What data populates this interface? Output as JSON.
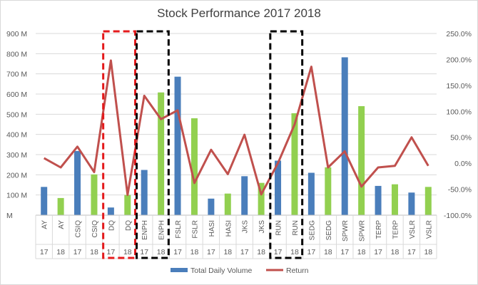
{
  "chart_data": {
    "type": "bar",
    "title": "Stock Performance 2017 2018",
    "categories": [
      {
        "ticker": "AY",
        "year": "17"
      },
      {
        "ticker": "AY",
        "year": "18"
      },
      {
        "ticker": "CSIQ",
        "year": "17"
      },
      {
        "ticker": "CSIQ",
        "year": "18"
      },
      {
        "ticker": "DQ",
        "year": "17"
      },
      {
        "ticker": "DQ",
        "year": "18"
      },
      {
        "ticker": "ENPH",
        "year": "17"
      },
      {
        "ticker": "ENPH",
        "year": "18"
      },
      {
        "ticker": "FSLR",
        "year": "17"
      },
      {
        "ticker": "FSLR",
        "year": "18"
      },
      {
        "ticker": "HASI",
        "year": "17"
      },
      {
        "ticker": "HASI",
        "year": "18"
      },
      {
        "ticker": "JKS",
        "year": "17"
      },
      {
        "ticker": "JKS",
        "year": "18"
      },
      {
        "ticker": "RUN",
        "year": "17"
      },
      {
        "ticker": "RUN",
        "year": "18"
      },
      {
        "ticker": "SEDG",
        "year": "17"
      },
      {
        "ticker": "SEDG",
        "year": "18"
      },
      {
        "ticker": "SPWR",
        "year": "17"
      },
      {
        "ticker": "SPWR",
        "year": "18"
      },
      {
        "ticker": "TERP",
        "year": "17"
      },
      {
        "ticker": "TERP",
        "year": "18"
      },
      {
        "ticker": "VSLR",
        "year": "17"
      },
      {
        "ticker": "VSLR",
        "year": "18"
      }
    ],
    "series": [
      {
        "name": "Total Daily Volume",
        "kind": "bar",
        "axis": "left",
        "values": [
          140,
          85,
          318,
          202,
          38,
          100,
          224,
          608,
          686,
          480,
          82,
          107,
          193,
          160,
          270,
          505,
          210,
          237,
          782,
          540,
          145,
          153,
          112,
          140
        ]
      },
      {
        "name": "Return",
        "kind": "line",
        "axis": "right",
        "values": [
          10,
          -8,
          32,
          -17,
          198,
          -61,
          130,
          85,
          102,
          -38,
          26,
          -21,
          55,
          -60,
          0,
          75,
          186,
          -8,
          23,
          -45,
          -8,
          -5,
          50,
          -5
        ]
      }
    ],
    "left_axis": {
      "ylim": [
        0,
        900
      ],
      "ticks": [
        "M",
        "100 M",
        "200 M",
        "300 M",
        "400 M",
        "500 M",
        "600 M",
        "700 M",
        "800 M",
        "900 M"
      ]
    },
    "right_axis": {
      "ylim": [
        -100,
        250
      ],
      "ticks": [
        "-100.0%",
        "-50.0%",
        "0.0%",
        "50.0%",
        "100.0%",
        "150.0%",
        "200.0%",
        "250.0%"
      ]
    },
    "annotations": [
      {
        "type": "dashed-box",
        "color": "#e41a1c",
        "span": [
          "DQ 17",
          "DQ 18"
        ]
      },
      {
        "type": "dashed-box",
        "color": "#000000",
        "span": [
          "ENPH 17",
          "ENPH 18"
        ]
      },
      {
        "type": "dashed-box",
        "color": "#000000",
        "span": [
          "RUN 17",
          "RUN 18"
        ]
      }
    ],
    "legend_position": "bottom",
    "grid": true,
    "colors": {
      "year17": "#4a7ebb",
      "year18": "#92d050",
      "line": "#c0504d"
    }
  }
}
